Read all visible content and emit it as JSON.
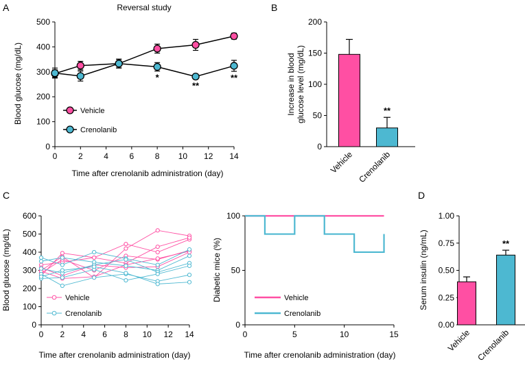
{
  "colors": {
    "vehicle": "#ff4fa3",
    "crenolanib": "#4db8d1",
    "axis": "#000000"
  },
  "chart_data": [
    {
      "panel": "A",
      "type": "line",
      "title": "Reversal study",
      "xlabel": "Time after crenolanib administration (day)",
      "ylabel": "Blood glucose (mg/dL)",
      "xlim": [
        0,
        14
      ],
      "ylim": [
        0,
        500
      ],
      "xticks": [
        "0",
        "2",
        "4",
        "6",
        "8",
        "10",
        "12",
        "14"
      ],
      "yticks": [
        "0",
        "100",
        "200",
        "300",
        "400",
        "500"
      ],
      "legend": [
        "Vehicle",
        "Crenolanib"
      ],
      "legend_position": "bottom-left",
      "series": [
        {
          "name": "Vehicle",
          "x": [
            0,
            2,
            5,
            8,
            11,
            14
          ],
          "values": [
            293,
            325,
            333,
            393,
            408,
            443
          ],
          "errors": [
            15,
            17,
            18,
            18,
            22,
            12
          ]
        },
        {
          "name": "Crenolanib",
          "x": [
            0,
            2,
            5,
            8,
            11,
            14
          ],
          "values": [
            295,
            283,
            333,
            320,
            281,
            324
          ],
          "errors": [
            20,
            20,
            17,
            17,
            10,
            22
          ]
        }
      ],
      "annotations": [
        {
          "x": 8,
          "text": "*"
        },
        {
          "x": 11,
          "text": "**"
        },
        {
          "x": 14,
          "text": "**"
        }
      ]
    },
    {
      "panel": "B",
      "type": "bar",
      "ylabel": "Increase in blood glucose level (mg/dL)",
      "ylabel_lines": [
        "Increase in blood",
        "glucose level (mg/dL)"
      ],
      "ylim": [
        0,
        200
      ],
      "yticks": [
        "0",
        "50",
        "100",
        "150",
        "200"
      ],
      "categories": [
        "Vehicle",
        "Crenolanib"
      ],
      "values": [
        148,
        30
      ],
      "errors": [
        24,
        17
      ],
      "annotations": [
        {
          "category": "Crenolanib",
          "text": "**"
        }
      ]
    },
    {
      "panel": "C",
      "type": "line",
      "subtype": "individual-traces",
      "xlabel": "Time after crenolanib administration (day)",
      "ylabel": "Blood glucose (mg/dL)",
      "xlim": [
        0,
        14
      ],
      "ylim": [
        0,
        600
      ],
      "xticks": [
        "0",
        "2",
        "4",
        "6",
        "8",
        "10",
        "12",
        "14"
      ],
      "yticks": [
        "0",
        "100",
        "200",
        "300",
        "400",
        "500",
        "600"
      ],
      "x": [
        0,
        2,
        5,
        8,
        11,
        14
      ],
      "legend": [
        "Vehicle",
        "Crenolanib"
      ],
      "legend_position": "bottom-left",
      "series": [
        {
          "name": "Vehicle",
          "values": [
            270,
            395,
            370,
            445,
            400,
            470
          ]
        },
        {
          "name": "Vehicle",
          "values": [
            300,
            375,
            260,
            420,
            520,
            490
          ]
        },
        {
          "name": "Vehicle",
          "values": [
            330,
            345,
            370,
            340,
            430,
            480
          ]
        },
        {
          "name": "Vehicle",
          "values": [
            285,
            360,
            300,
            380,
            360,
            410
          ]
        },
        {
          "name": "Vehicle",
          "values": [
            295,
            255,
            265,
            330,
            365,
            405
          ]
        },
        {
          "name": "Vehicle",
          "values": [
            315,
            270,
            330,
            315,
            320,
            400
          ]
        },
        {
          "name": "Crenolanib",
          "values": [
            370,
            330,
            400,
            365,
            330,
            415
          ]
        },
        {
          "name": "Crenolanib",
          "values": [
            350,
            370,
            345,
            325,
            300,
            380
          ]
        },
        {
          "name": "Crenolanib",
          "values": [
            310,
            285,
            330,
            360,
            290,
            340
          ]
        },
        {
          "name": "Crenolanib",
          "values": [
            255,
            260,
            305,
            245,
            280,
            325
          ]
        },
        {
          "name": "Crenolanib",
          "values": [
            280,
            215,
            260,
            280,
            240,
            275
          ]
        },
        {
          "name": "Crenolanib",
          "values": [
            265,
            300,
            320,
            285,
            225,
            235
          ]
        }
      ]
    },
    {
      "panel": "C2",
      "type": "line",
      "subtype": "step",
      "xlabel": "Time after crenolanib administration (day)",
      "ylabel": "Diabetic mice (%)",
      "xlim": [
        0,
        15
      ],
      "ylim": [
        0,
        100
      ],
      "xticks": [
        "0",
        "5",
        "10",
        "15"
      ],
      "yticks": [
        "0",
        "50",
        "100"
      ],
      "legend": [
        "Vehicle",
        "Crenolanib"
      ],
      "legend_position": "bottom-left",
      "series": [
        {
          "name": "Vehicle",
          "x": [
            0,
            14
          ],
          "values": [
            100,
            100
          ]
        },
        {
          "name": "Crenolanib",
          "x": [
            0,
            2,
            2,
            5,
            5,
            8,
            8,
            11,
            11,
            14,
            14
          ],
          "values": [
            100,
            100,
            83.3,
            83.3,
            100,
            100,
            83.3,
            83.3,
            66.7,
            66.7,
            83.3
          ]
        }
      ]
    },
    {
      "panel": "D",
      "type": "bar",
      "ylabel": "Serum insulin (ng/mL)",
      "ylim": [
        0,
        1
      ],
      "yticks": [
        "0.00",
        "0.25",
        "0.50",
        "0.75",
        "1.00"
      ],
      "categories": [
        "Vehicle",
        "Crenolanib"
      ],
      "values": [
        0.395,
        0.64
      ],
      "errors": [
        0.045,
        0.045
      ],
      "annotations": [
        {
          "category": "Crenolanib",
          "text": "**"
        }
      ]
    }
  ]
}
